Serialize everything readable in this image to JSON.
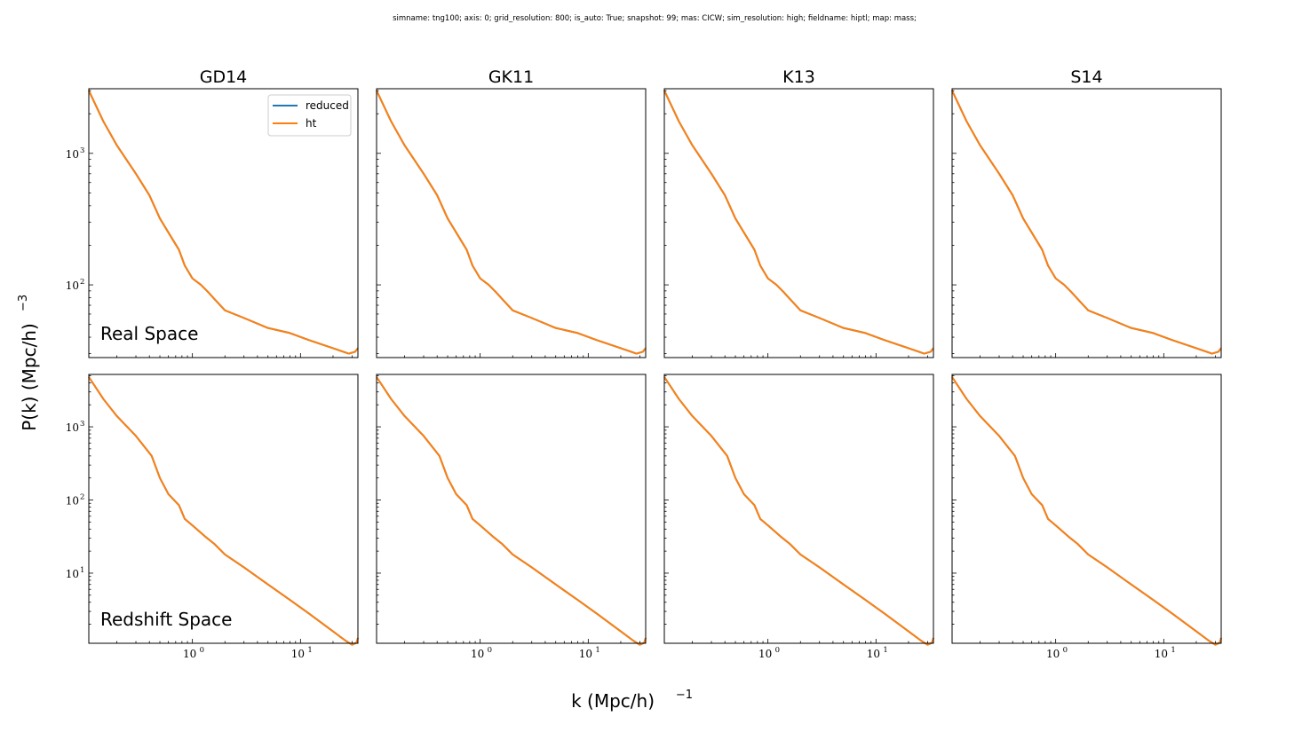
{
  "suptitle": "simname: tng100; axis: 0; grid_resolution: 800; is_auto: True; snapshot: 99; mas: CICW; sim_resolution: high; fieldname: hiptl; map: mass;",
  "xlabel": "k (Mpc/h)",
  "xlabel_exp": "−1",
  "ylabel": "P(k) (Mpc/h)",
  "ylabel_exp": "−3",
  "columns": [
    "GD14",
    "GK11",
    "K13",
    "S14"
  ],
  "rows": [
    "Real Space",
    "Redshift Space"
  ],
  "colors": {
    "reduced": "#1f77b4",
    "ht": "#ff7f0e"
  },
  "chart_data": {
    "type": "line",
    "xscale": "log",
    "yscale": "log",
    "legend": {
      "placement": "top-right",
      "entries": [
        "reduced",
        "ht"
      ]
    },
    "xticks": [
      {
        "value": 1,
        "base": "10",
        "exp": "0"
      },
      {
        "value": 10,
        "base": "10",
        "exp": "1"
      }
    ],
    "panels": {
      "real": {
        "xlim": [
          0.11,
          34
        ],
        "ylim": [
          28,
          3100
        ],
        "yticks": [
          {
            "value": 100,
            "base": "10",
            "exp": "2"
          },
          {
            "value": 1000,
            "base": "10",
            "exp": "3"
          }
        ],
        "series": [
          {
            "name": "reduced",
            "x": [
              0.11,
              0.15,
              0.2,
              0.3,
              0.4,
              0.5,
              0.6,
              0.75,
              0.85,
              1.0,
              1.2,
              1.4,
              1.6,
              2.0,
              3.0,
              5.0,
              8.0,
              12.0,
              20.0,
              28.0,
              32.0,
              34.0
            ],
            "y": [
              3000,
              1750,
              1150,
              700,
              480,
              320,
              250,
              185,
              140,
              112,
              100,
              88,
              78,
              64,
              56,
              47,
              43,
              38,
              33,
              30,
              31,
              33
            ]
          },
          {
            "name": "ht",
            "x": [
              0.11,
              0.15,
              0.2,
              0.3,
              0.4,
              0.5,
              0.6,
              0.75,
              0.85,
              1.0,
              1.2,
              1.4,
              1.6,
              2.0,
              3.0,
              5.0,
              8.0,
              12.0,
              20.0,
              28.0,
              32.0,
              34.0
            ],
            "y": [
              3000,
              1750,
              1150,
              700,
              480,
              320,
              250,
              185,
              140,
              112,
              100,
              88,
              78,
              64,
              56,
              47,
              43,
              38,
              33,
              30,
              31,
              33
            ]
          }
        ]
      },
      "redshift": {
        "xlim": [
          0.11,
          34
        ],
        "ylim": [
          1.1,
          5200
        ],
        "yticks": [
          {
            "value": 10,
            "base": "10",
            "exp": "1"
          },
          {
            "value": 100,
            "base": "10",
            "exp": "2"
          },
          {
            "value": 1000,
            "base": "10",
            "exp": "3"
          }
        ],
        "series": [
          {
            "name": "reduced",
            "x": [
              0.11,
              0.15,
              0.2,
              0.3,
              0.42,
              0.5,
              0.6,
              0.75,
              0.85,
              1.0,
              1.3,
              1.6,
              2.0,
              3.0,
              5.0,
              8.0,
              12.0,
              20.0,
              26.0,
              30.0,
              33.0,
              34.0
            ],
            "y": [
              4800,
              2400,
              1400,
              750,
              400,
              200,
              120,
              85,
              55,
              45,
              32,
              25,
              18,
              12,
              7,
              4.3,
              2.8,
              1.6,
              1.2,
              1.05,
              1.12,
              1.3
            ]
          },
          {
            "name": "ht",
            "x": [
              0.11,
              0.15,
              0.2,
              0.3,
              0.42,
              0.5,
              0.6,
              0.75,
              0.85,
              1.0,
              1.3,
              1.6,
              2.0,
              3.0,
              5.0,
              8.0,
              12.0,
              20.0,
              26.0,
              30.0,
              33.0,
              34.0
            ],
            "y": [
              4800,
              2400,
              1400,
              750,
              400,
              200,
              120,
              85,
              55,
              45,
              32,
              25,
              18,
              12,
              7,
              4.3,
              2.8,
              1.6,
              1.2,
              1.05,
              1.12,
              1.3
            ]
          }
        ]
      }
    }
  }
}
